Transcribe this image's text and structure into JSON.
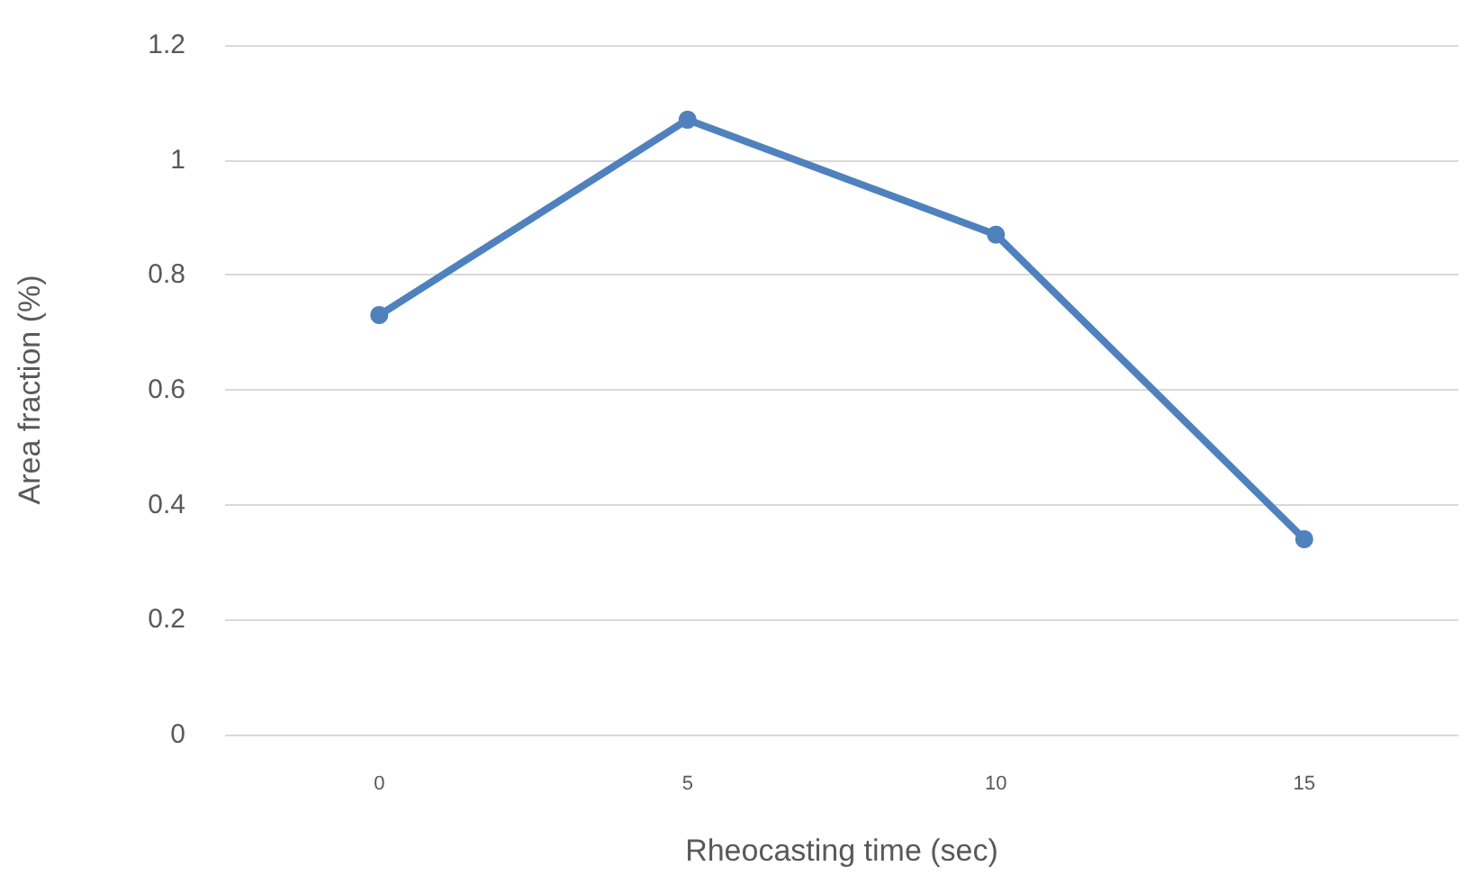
{
  "chart_data": {
    "type": "line",
    "xlabel": "Rheocasting time (sec)",
    "ylabel": "Area fraction (%)",
    "categories": [
      "0",
      "5",
      "10",
      "15"
    ],
    "series": [
      {
        "color": "#4f81bd",
        "values": [
          0.73,
          1.07,
          0.87,
          0.34
        ]
      }
    ],
    "ylim": [
      0,
      1.2
    ],
    "yticks": [
      0,
      0.2,
      0.4,
      0.6,
      0.8,
      1,
      1.2
    ],
    "grid": "y",
    "marker": "circle",
    "line_style": "solid"
  }
}
